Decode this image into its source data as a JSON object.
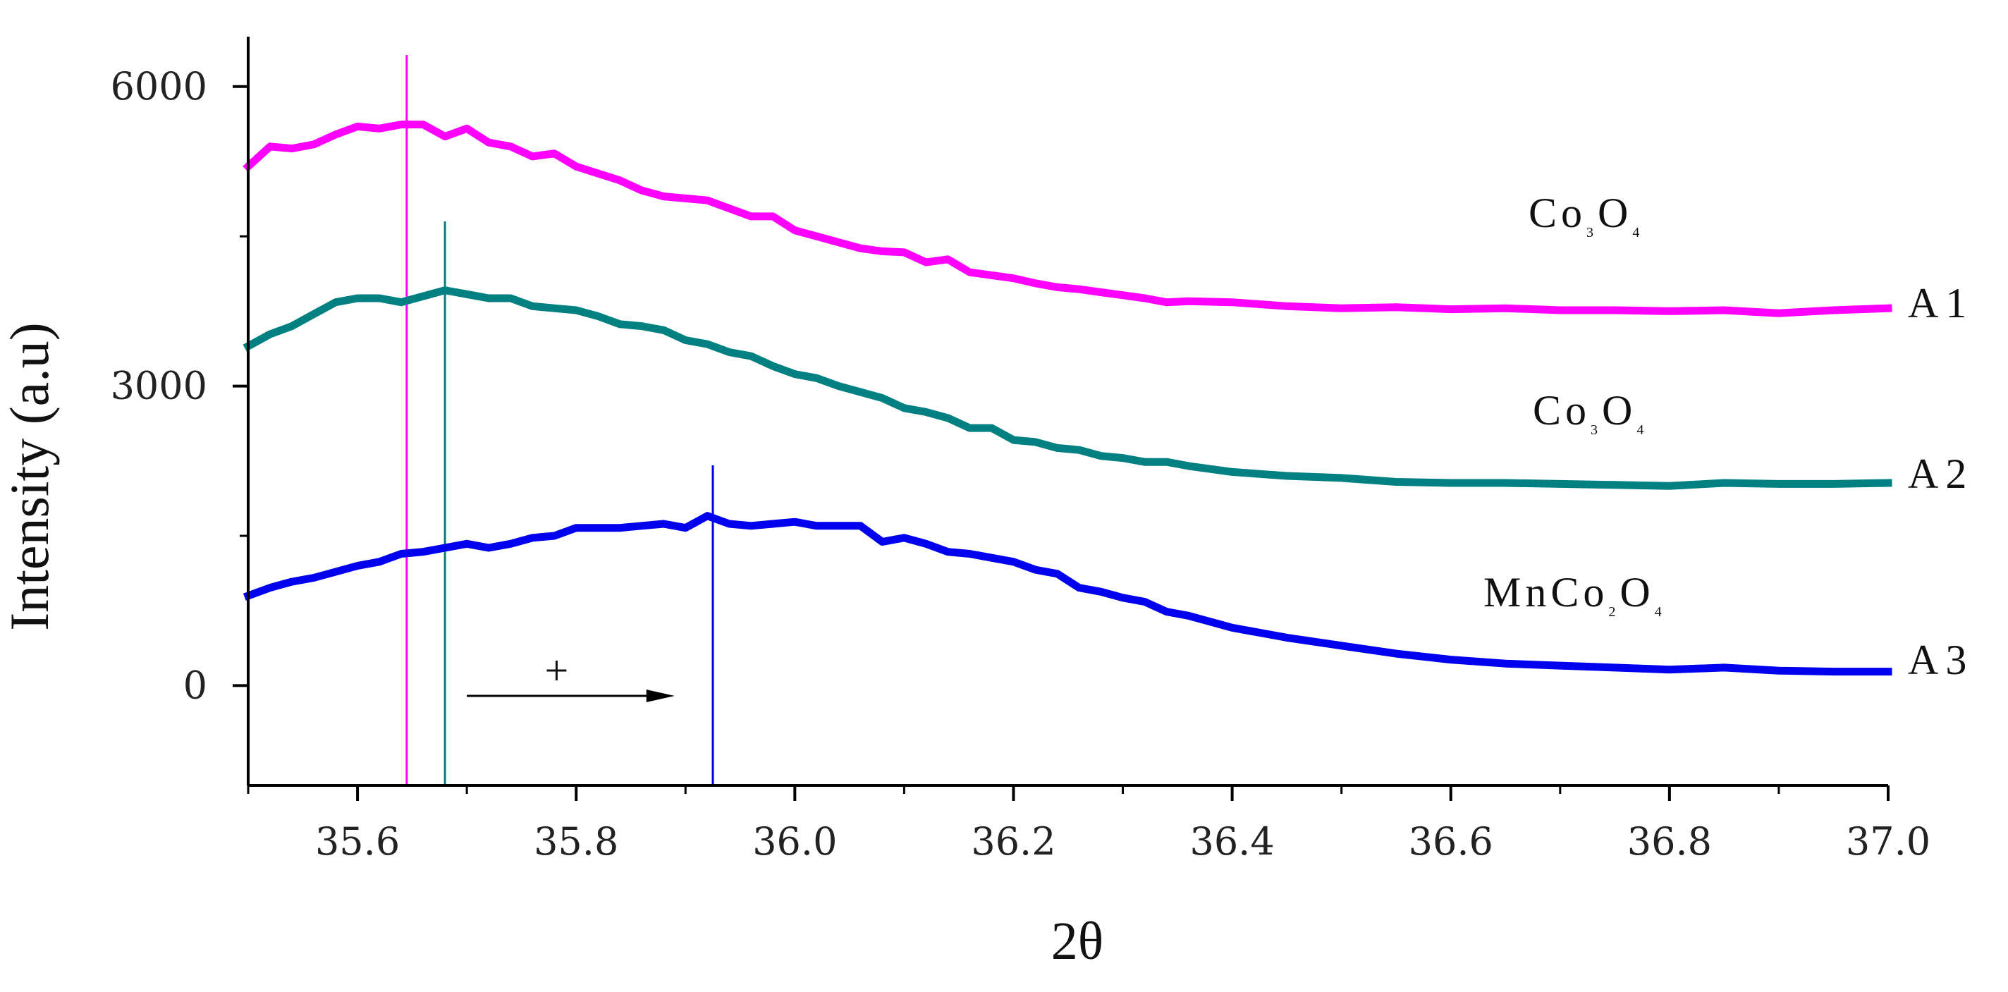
{
  "chart_data": {
    "type": "line",
    "xlabel": "2θ",
    "ylabel": "Intensity (a.u)",
    "xlim": [
      35.5,
      37.0
    ],
    "ylim": [
      -1000,
      6500
    ],
    "x_ticks": [
      "35.6",
      "35.8",
      "36.0",
      "36.2",
      "36.4",
      "36.6",
      "36.8",
      "37.0"
    ],
    "x_tick_values": [
      35.6,
      35.8,
      36.0,
      36.2,
      36.4,
      36.6,
      36.8,
      37.0
    ],
    "y_ticks": [
      "0",
      "3000",
      "6000"
    ],
    "y_tick_values": [
      0,
      3000,
      6000
    ],
    "y_minor_ticks": [
      1500,
      4500
    ],
    "grid": false,
    "series": [
      {
        "name": "A1",
        "compound": {
          "parts": [
            {
              "t": "Co",
              "sub": false
            },
            {
              "t": "3",
              "sub": true
            },
            {
              "t": "O",
              "sub": false
            },
            {
              "t": "4",
              "sub": true
            }
          ]
        },
        "color": "#ff00ff",
        "peak": 35.645,
        "x": [
          35.5,
          35.52,
          35.54,
          35.56,
          35.58,
          35.6,
          35.62,
          35.64,
          35.66,
          35.68,
          35.7,
          35.72,
          35.74,
          35.76,
          35.78,
          35.8,
          35.82,
          35.84,
          35.86,
          35.88,
          35.9,
          35.92,
          35.94,
          35.96,
          35.98,
          36.0,
          36.02,
          36.04,
          36.06,
          36.08,
          36.1,
          36.12,
          36.14,
          36.16,
          36.18,
          36.2,
          36.22,
          36.24,
          36.26,
          36.28,
          36.3,
          36.32,
          36.34,
          36.36,
          36.4,
          36.45,
          36.5,
          36.55,
          36.6,
          36.65,
          36.7,
          36.75,
          36.8,
          36.85,
          36.9,
          36.95,
          37.0
        ],
        "y": [
          5200,
          5400,
          5380,
          5420,
          5520,
          5600,
          5580,
          5620,
          5620,
          5500,
          5580,
          5440,
          5400,
          5300,
          5330,
          5200,
          5130,
          5060,
          4960,
          4900,
          4880,
          4860,
          4780,
          4700,
          4700,
          4560,
          4500,
          4440,
          4380,
          4350,
          4340,
          4240,
          4270,
          4140,
          4110,
          4080,
          4030,
          3990,
          3970,
          3940,
          3910,
          3880,
          3840,
          3850,
          3840,
          3800,
          3780,
          3790,
          3770,
          3780,
          3760,
          3760,
          3750,
          3760,
          3730,
          3760,
          3780
        ]
      },
      {
        "name": "A2",
        "compound": {
          "parts": [
            {
              "t": "Co",
              "sub": false
            },
            {
              "t": "3",
              "sub": true
            },
            {
              "t": "O",
              "sub": false
            },
            {
              "t": "4",
              "sub": true
            }
          ]
        },
        "color": "#008080",
        "peak": 35.68,
        "x": [
          35.5,
          35.52,
          35.54,
          35.56,
          35.58,
          35.6,
          35.62,
          35.64,
          35.66,
          35.68,
          35.7,
          35.72,
          35.74,
          35.76,
          35.78,
          35.8,
          35.82,
          35.84,
          35.86,
          35.88,
          35.9,
          35.92,
          35.94,
          35.96,
          35.98,
          36.0,
          36.02,
          36.04,
          36.06,
          36.08,
          36.1,
          36.12,
          36.14,
          36.16,
          36.18,
          36.2,
          36.22,
          36.24,
          36.26,
          36.28,
          36.3,
          36.32,
          36.34,
          36.36,
          36.4,
          36.45,
          36.5,
          36.55,
          36.6,
          36.65,
          36.7,
          36.75,
          36.8,
          36.85,
          36.9,
          36.95,
          37.0
        ],
        "y": [
          3400,
          3520,
          3600,
          3720,
          3840,
          3880,
          3880,
          3840,
          3900,
          3960,
          3920,
          3880,
          3880,
          3800,
          3780,
          3760,
          3700,
          3620,
          3600,
          3560,
          3460,
          3420,
          3340,
          3300,
          3200,
          3120,
          3080,
          3000,
          2940,
          2880,
          2780,
          2740,
          2680,
          2580,
          2580,
          2460,
          2440,
          2380,
          2360,
          2300,
          2280,
          2240,
          2240,
          2200,
          2140,
          2100,
          2080,
          2040,
          2030,
          2030,
          2020,
          2010,
          2000,
          2030,
          2020,
          2020,
          2030
        ]
      },
      {
        "name": "A3",
        "compound": {
          "parts": [
            {
              "t": "Mn",
              "sub": false
            },
            {
              "t": "Co",
              "sub": false
            },
            {
              "t": "2",
              "sub": true
            },
            {
              "t": "O",
              "sub": false
            },
            {
              "t": "4",
              "sub": true
            }
          ]
        },
        "color": "#0000ee",
        "peak": 35.925,
        "x": [
          35.5,
          35.52,
          35.54,
          35.56,
          35.58,
          35.6,
          35.62,
          35.64,
          35.66,
          35.68,
          35.7,
          35.72,
          35.74,
          35.76,
          35.78,
          35.8,
          35.82,
          35.84,
          35.86,
          35.88,
          35.9,
          35.92,
          35.94,
          35.96,
          35.98,
          36.0,
          36.02,
          36.04,
          36.06,
          36.08,
          36.1,
          36.12,
          36.14,
          36.16,
          36.18,
          36.2,
          36.22,
          36.24,
          36.26,
          36.28,
          36.3,
          36.32,
          36.34,
          36.36,
          36.4,
          36.45,
          36.5,
          36.55,
          36.6,
          36.65,
          36.7,
          36.75,
          36.8,
          36.85,
          36.9,
          36.95,
          37.0
        ],
        "y": [
          900,
          980,
          1040,
          1080,
          1140,
          1200,
          1240,
          1320,
          1340,
          1380,
          1420,
          1380,
          1420,
          1480,
          1500,
          1580,
          1580,
          1580,
          1600,
          1620,
          1580,
          1700,
          1620,
          1600,
          1620,
          1640,
          1600,
          1600,
          1600,
          1440,
          1480,
          1420,
          1340,
          1320,
          1280,
          1240,
          1160,
          1120,
          980,
          940,
          880,
          840,
          740,
          700,
          580,
          480,
          400,
          320,
          260,
          220,
          200,
          180,
          160,
          180,
          150,
          140,
          140
        ]
      }
    ],
    "annotation": {
      "text": "+",
      "arrow_from": 35.7,
      "arrow_to": 35.89
    }
  }
}
